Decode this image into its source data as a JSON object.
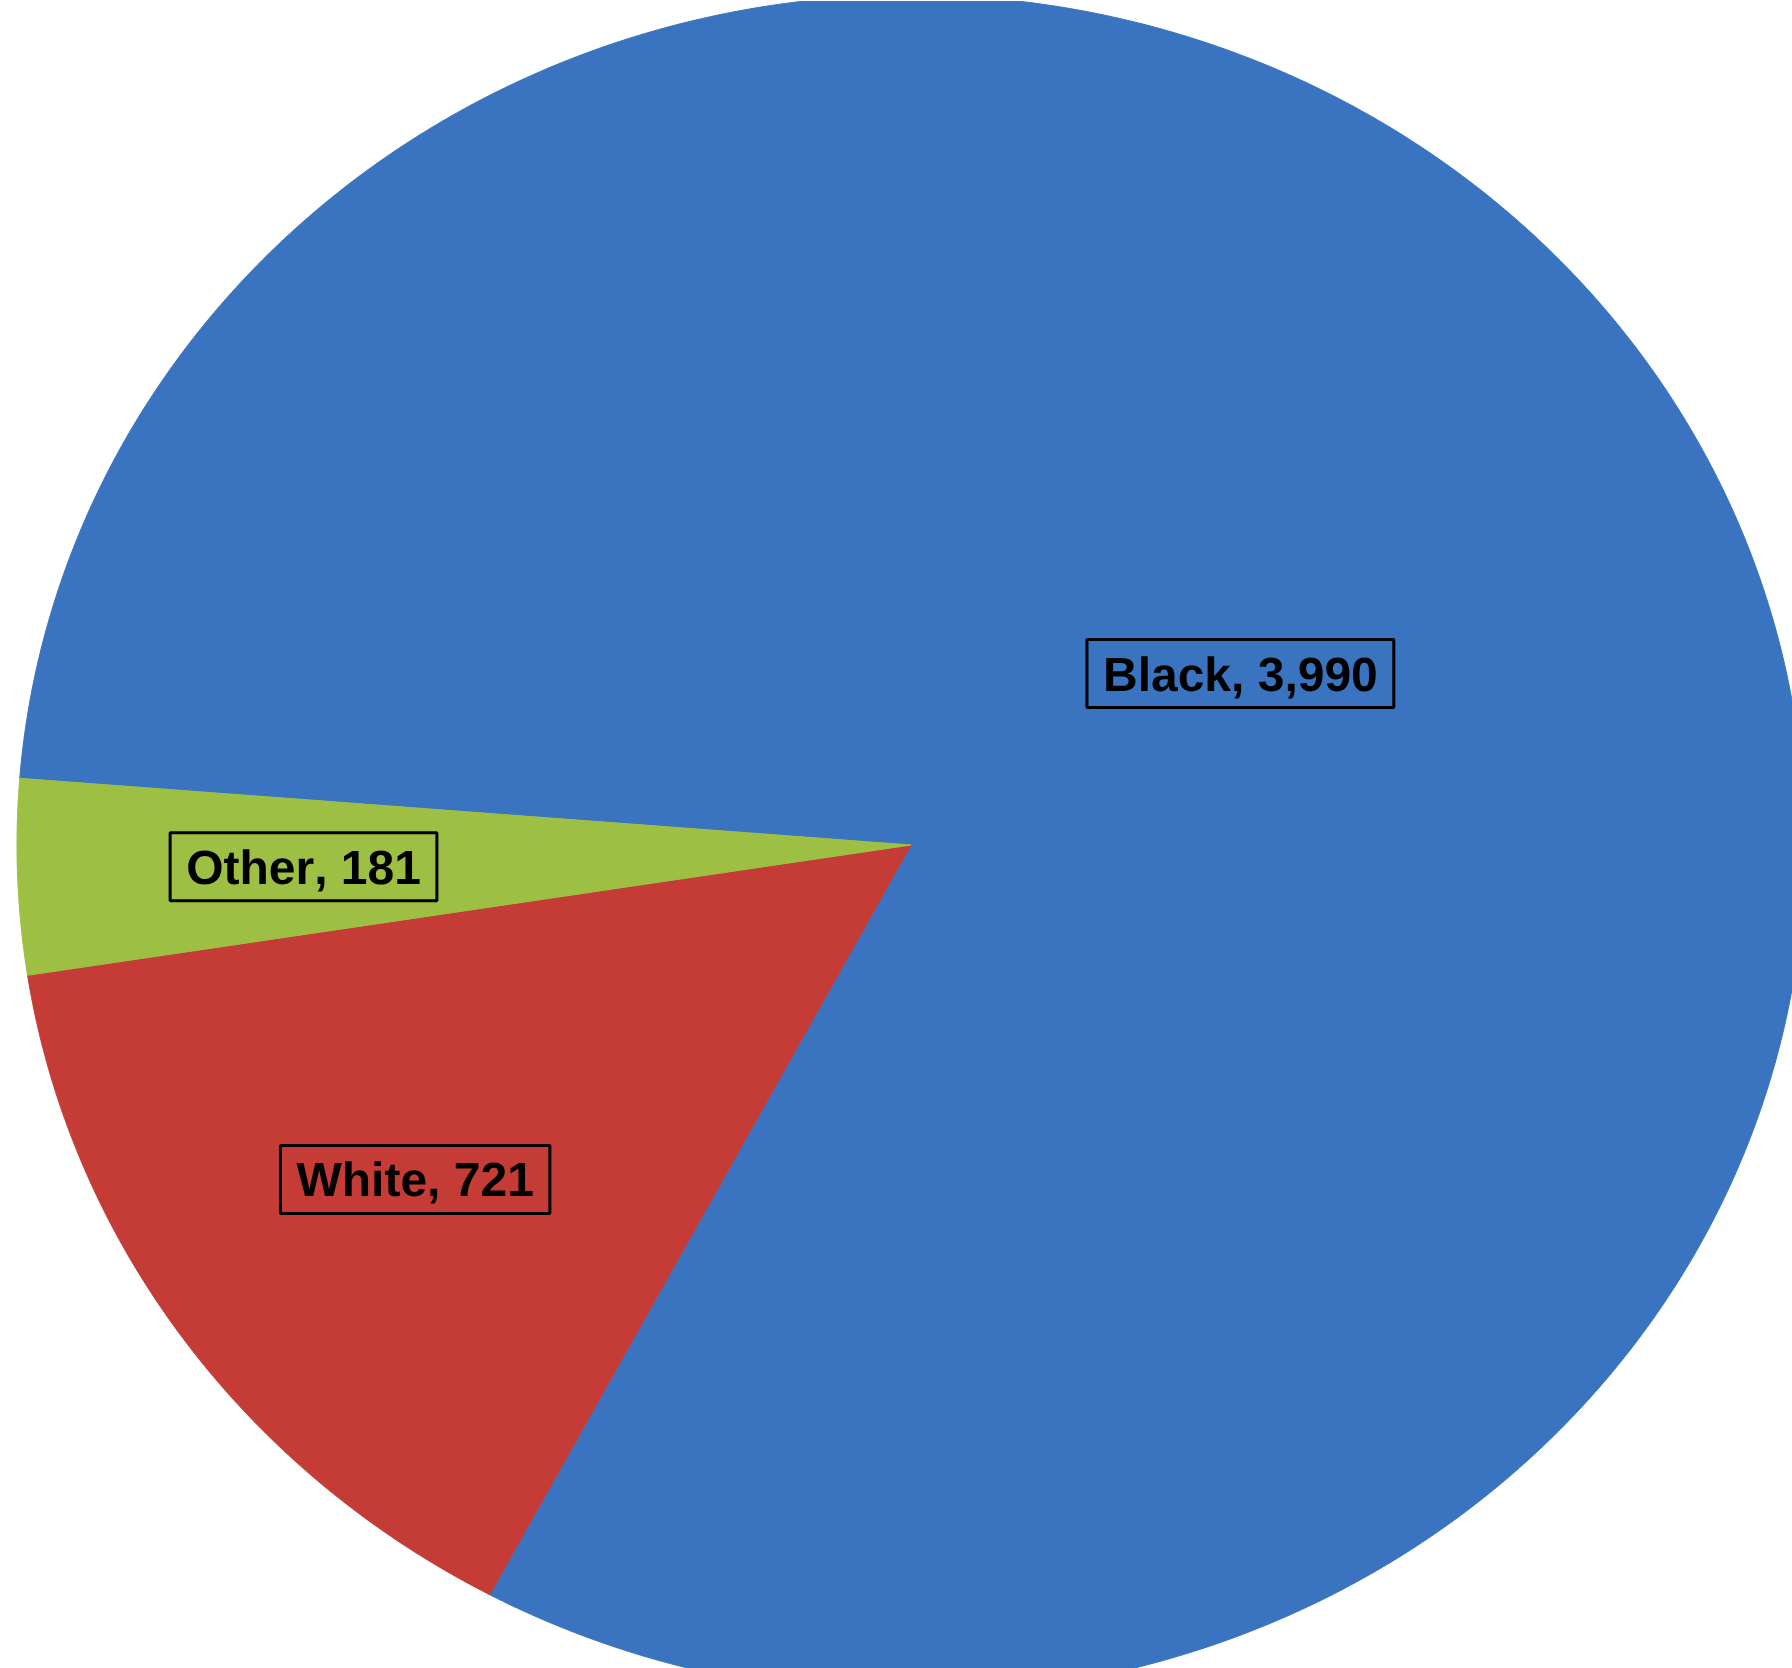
{
  "chart_data": {
    "type": "pie",
    "categories": [
      "Black",
      "White",
      "Other"
    ],
    "values": [
      3990,
      721,
      181
    ],
    "colors": [
      "#3a74c0",
      "#c53c37",
      "#9dc044"
    ],
    "value_labels": [
      ", 3,990",
      ", 721",
      ", 181"
    ]
  }
}
